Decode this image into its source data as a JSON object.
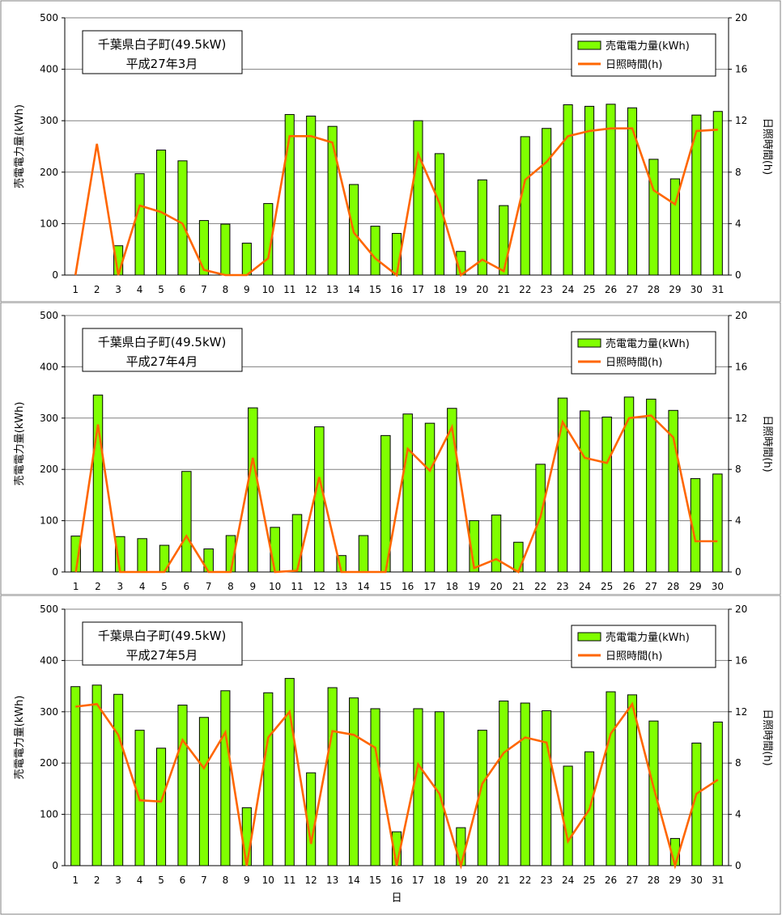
{
  "colors": {
    "bar_fill": "#80ff00",
    "bar_stroke": "#000000",
    "line": "#ff6600",
    "grid": "#808080"
  },
  "chart_data": [
    {
      "type": "bar",
      "title": "千葉県白子町(49.5kW)",
      "subtitle": "平成27年3月",
      "xlabel": "",
      "ylabel": "売電電力量(kWh)",
      "y2label": "日照時間(h)",
      "ylim": [
        0,
        500
      ],
      "y2lim": [
        0,
        20
      ],
      "yticks": [
        0,
        100,
        200,
        300,
        400,
        500
      ],
      "y2ticks": [
        0,
        4,
        8,
        12,
        16,
        20
      ],
      "grid": true,
      "legend_position": "top-right",
      "categories": [
        "1",
        "2",
        "3",
        "4",
        "5",
        "6",
        "7",
        "8",
        "9",
        "10",
        "11",
        "12",
        "13",
        "14",
        "15",
        "16",
        "17",
        "18",
        "19",
        "20",
        "21",
        "22",
        "23",
        "24",
        "25",
        "26",
        "27",
        "28",
        "29",
        "30",
        "31"
      ],
      "series": [
        {
          "name": "売電電力量(kWh)",
          "type": "bar",
          "axis": "left",
          "values": [
            0,
            0,
            57,
            197,
            243,
            222,
            106,
            99,
            62,
            139,
            312,
            309,
            289,
            176,
            95,
            81,
            300,
            236,
            46,
            185,
            135,
            269,
            285,
            331,
            328,
            332,
            325,
            225,
            187,
            311,
            318
          ]
        },
        {
          "name": "日照時間(h)",
          "type": "line",
          "axis": "right",
          "values": [
            0,
            10.2,
            0,
            5.4,
            4.9,
            4,
            0.4,
            0,
            0,
            1.3,
            10.8,
            10.8,
            10.3,
            3.3,
            1.3,
            0,
            9.4,
            5.6,
            0,
            1.2,
            0.3,
            7.4,
            8.8,
            10.8,
            11.2,
            11.4,
            11.4,
            6.6,
            5.5,
            11.2,
            11.3
          ]
        }
      ]
    },
    {
      "type": "bar",
      "title": "千葉県白子町(49.5kW)",
      "subtitle": "平成27年4月",
      "xlabel": "",
      "ylabel": "売電電力量(kWh)",
      "y2label": "日照時間(h)",
      "ylim": [
        0,
        500
      ],
      "y2lim": [
        0,
        20
      ],
      "yticks": [
        0,
        100,
        200,
        300,
        400,
        500
      ],
      "y2ticks": [
        0,
        4,
        8,
        12,
        16,
        20
      ],
      "grid": true,
      "legend_position": "top-right",
      "categories": [
        "1",
        "2",
        "3",
        "4",
        "5",
        "6",
        "7",
        "8",
        "9",
        "10",
        "11",
        "12",
        "13",
        "14",
        "15",
        "16",
        "17",
        "18",
        "19",
        "20",
        "21",
        "22",
        "23",
        "24",
        "25",
        "26",
        "27",
        "28",
        "29",
        "30"
      ],
      "series": [
        {
          "name": "売電電力量(kWh)",
          "type": "bar",
          "axis": "left",
          "values": [
            70,
            345,
            69,
            65,
            52,
            196,
            45,
            71,
            320,
            87,
            112,
            283,
            32,
            71,
            266,
            308,
            290,
            319,
            100,
            111,
            58,
            210,
            339,
            314,
            302,
            341,
            337,
            315,
            182,
            191
          ]
        },
        {
          "name": "日照時間(h)",
          "type": "line",
          "axis": "right",
          "values": [
            0,
            11.5,
            0,
            0,
            0,
            2.8,
            0,
            0,
            8.9,
            0,
            0.1,
            7.4,
            0,
            0,
            0,
            9.6,
            7.9,
            11.3,
            0.3,
            1,
            0,
            4.3,
            11.7,
            8.9,
            8.5,
            12,
            12.2,
            10.5,
            2.4,
            2.4
          ]
        }
      ]
    },
    {
      "type": "bar",
      "title": "千葉県白子町(49.5kW)",
      "subtitle": "平成27年5月",
      "xlabel": "日",
      "ylabel": "売電電力量(kWh)",
      "y2label": "日照時間(h)",
      "ylim": [
        0,
        500
      ],
      "y2lim": [
        0,
        20
      ],
      "yticks": [
        0,
        100,
        200,
        300,
        400,
        500
      ],
      "y2ticks": [
        0,
        4,
        8,
        12,
        16,
        20
      ],
      "grid": true,
      "legend_position": "top-right",
      "categories": [
        "1",
        "2",
        "3",
        "4",
        "5",
        "6",
        "7",
        "8",
        "9",
        "10",
        "11",
        "12",
        "13",
        "14",
        "15",
        "16",
        "17",
        "18",
        "19",
        "20",
        "21",
        "22",
        "23",
        "24",
        "25",
        "26",
        "27",
        "28",
        "29",
        "30",
        "31"
      ],
      "series": [
        {
          "name": "売電電力量(kWh)",
          "type": "bar",
          "axis": "left",
          "values": [
            349,
            352,
            334,
            264,
            229,
            313,
            289,
            341,
            113,
            337,
            365,
            181,
            347,
            327,
            306,
            66,
            306,
            300,
            74,
            264,
            321,
            317,
            302,
            194,
            222,
            339,
            333,
            282,
            53,
            239,
            280
          ]
        },
        {
          "name": "日照時間(h)",
          "type": "line",
          "axis": "right",
          "values": [
            12.4,
            12.6,
            10.2,
            5.1,
            5,
            9.8,
            7.6,
            10.4,
            0,
            10,
            12,
            1.7,
            10.5,
            10.2,
            9.2,
            0,
            7.9,
            5.6,
            0,
            6.4,
            8.8,
            10,
            9.6,
            1.9,
            4.4,
            10.3,
            12.6,
            6.1,
            0,
            5.6,
            6.7
          ]
        }
      ]
    }
  ]
}
